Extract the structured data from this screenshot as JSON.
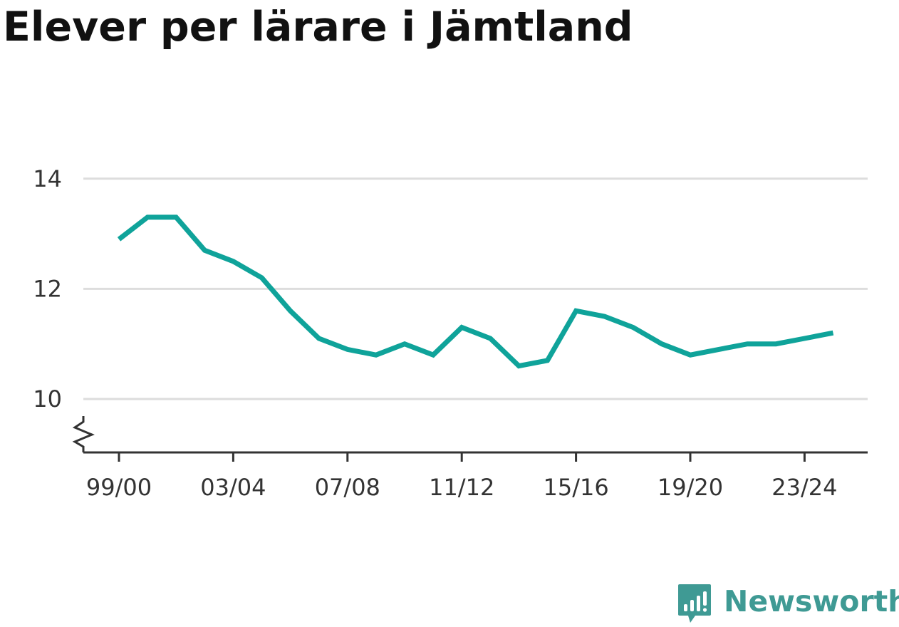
{
  "title": "Elever per lärare i Jämtland",
  "logo": {
    "text": "Newsworthy",
    "icon": "newsworthy-chart-bubble-icon",
    "color": "#3f9a94"
  },
  "chart_data": {
    "type": "line",
    "title": "Elever per lärare i Jämtland",
    "xlabel": "",
    "ylabel": "",
    "x": [
      "99/00",
      "00/01",
      "01/02",
      "02/03",
      "03/04",
      "04/05",
      "05/06",
      "06/07",
      "07/08",
      "08/09",
      "09/10",
      "10/11",
      "11/12",
      "12/13",
      "13/14",
      "14/15",
      "15/16",
      "16/17",
      "17/18",
      "18/19",
      "19/20",
      "20/21",
      "21/22",
      "22/23",
      "23/24",
      "24/25"
    ],
    "x_tick_labels": [
      "99/00",
      "03/04",
      "07/08",
      "11/12",
      "15/16",
      "19/20",
      "23/24"
    ],
    "series": [
      {
        "values": [
          12.9,
          13.3,
          13.3,
          12.7,
          12.5,
          12.2,
          11.6,
          11.1,
          10.9,
          10.8,
          11.0,
          10.8,
          11.3,
          11.1,
          10.6,
          10.7,
          11.6,
          11.5,
          11.3,
          11.0,
          10.8,
          10.9,
          11.0,
          11.0,
          11.1,
          11.2
        ],
        "color": "#0fa39a"
      }
    ],
    "y_ticks": [
      10,
      12,
      14
    ],
    "ylim": [
      10,
      14
    ],
    "y_axis_break": true,
    "grid": true,
    "gridline_color": "#dddddd",
    "axis_color": "#333333"
  }
}
